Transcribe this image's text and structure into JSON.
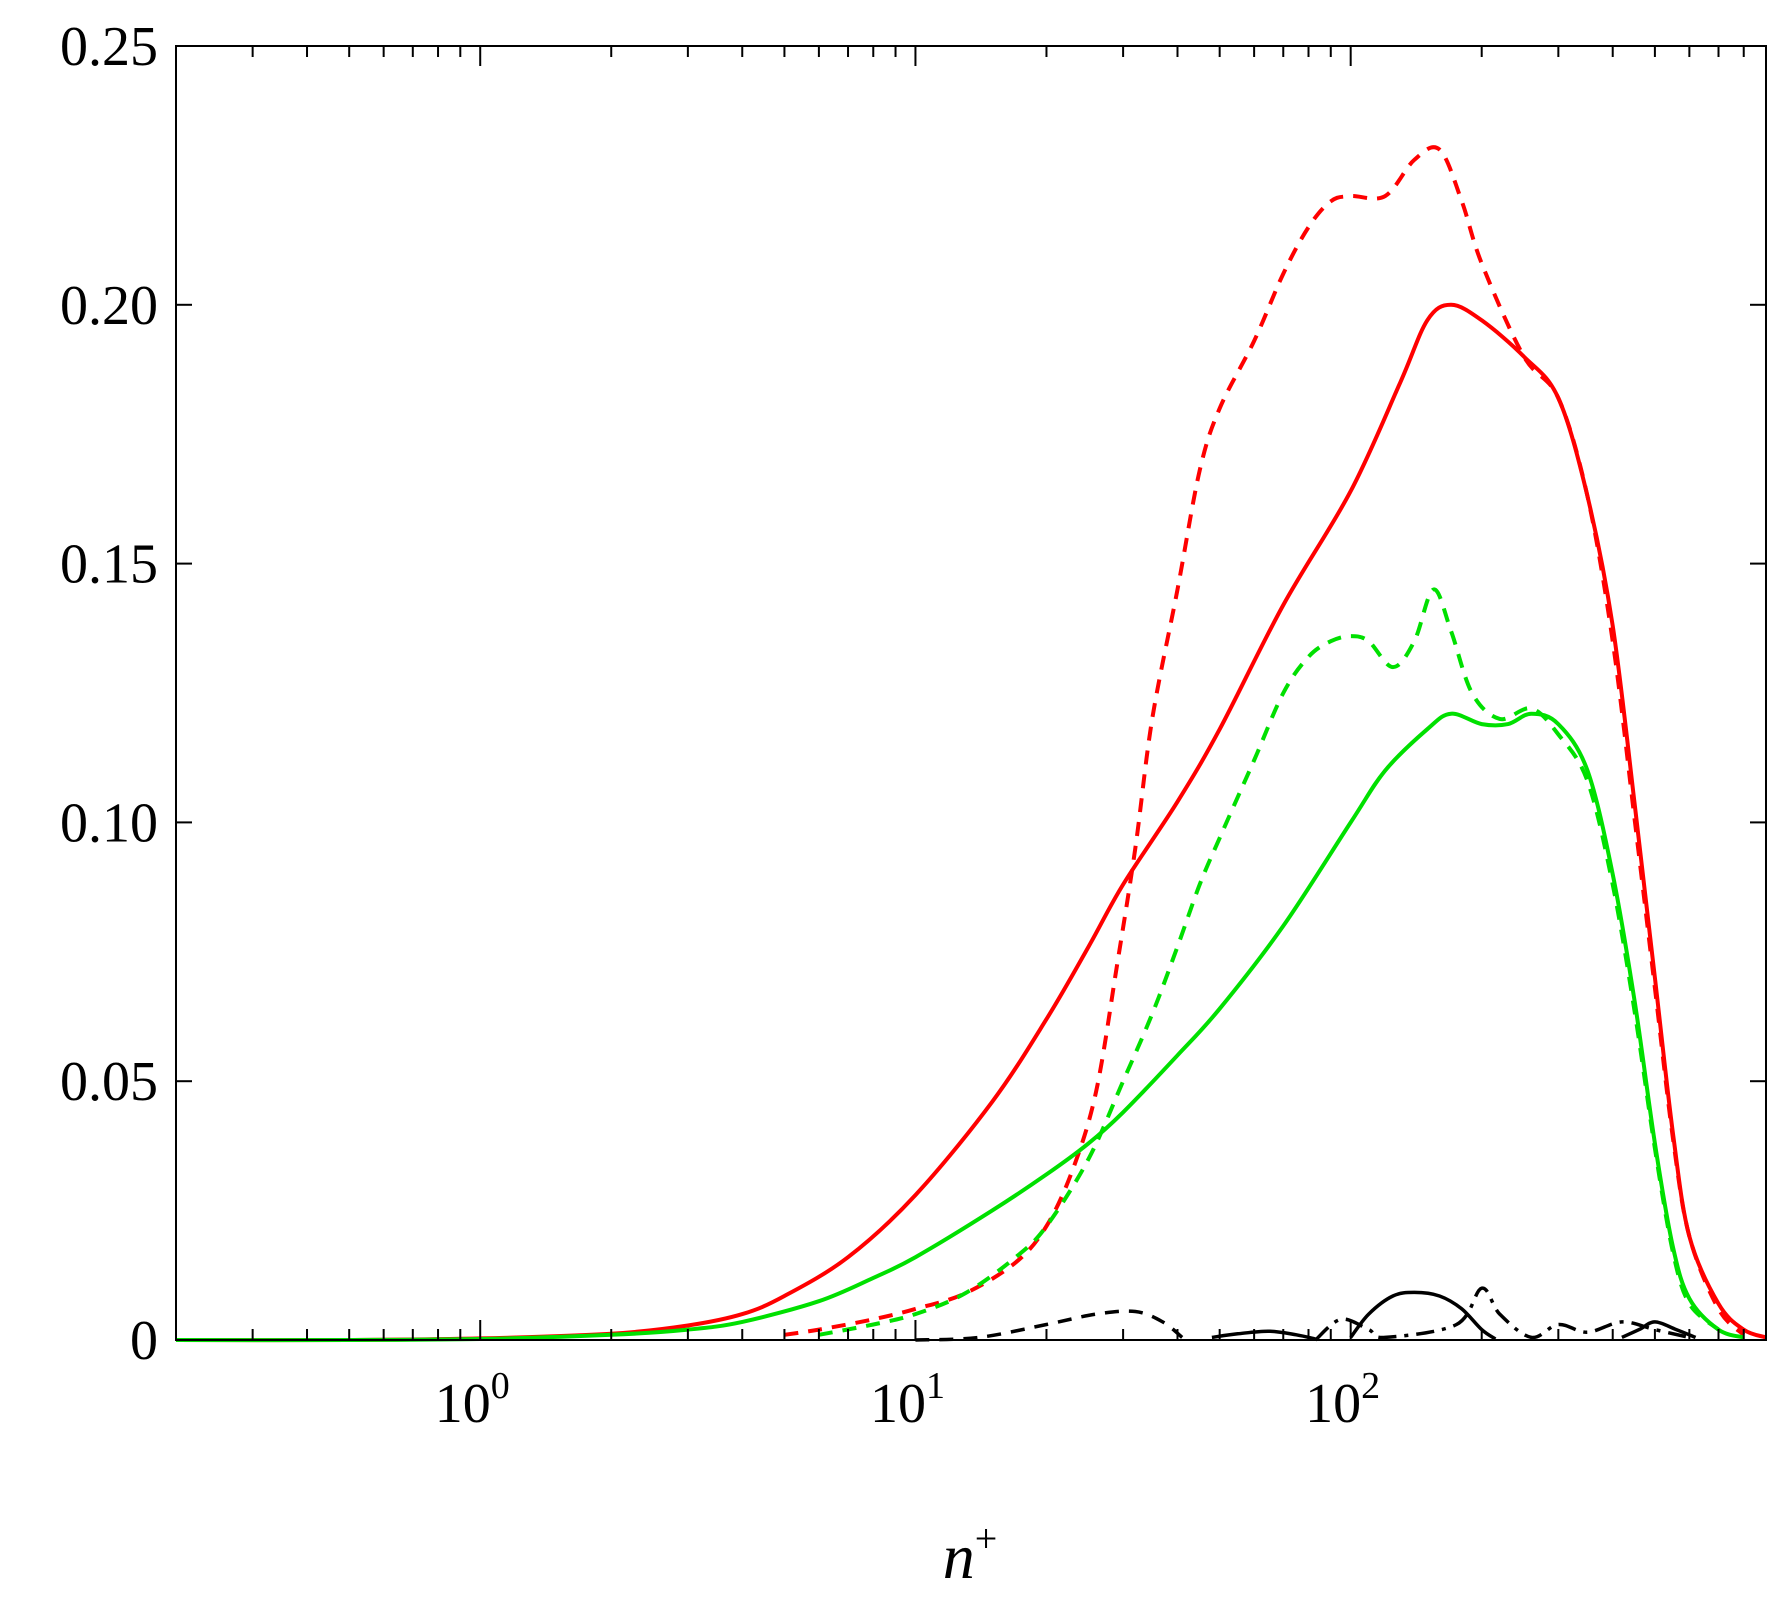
{
  "chart_data": {
    "type": "line",
    "title": "",
    "xlabel": "n",
    "xlabel_sup": "+",
    "ylabel": "",
    "xscale": "log",
    "xlim": [
      0.2,
      900
    ],
    "ylim": [
      0,
      0.25
    ],
    "grid": false,
    "legend": "none",
    "yticks": [
      {
        "value": 0,
        "label": "0"
      },
      {
        "value": 0.05,
        "label": "0.05"
      },
      {
        "value": 0.1,
        "label": "0.10"
      },
      {
        "value": 0.15,
        "label": "0.15"
      },
      {
        "value": 0.2,
        "label": "0.20"
      },
      {
        "value": 0.25,
        "label": "0.25"
      }
    ],
    "xticks": [
      {
        "value": 1,
        "base": "10",
        "exp": "0"
      },
      {
        "value": 10,
        "base": "10",
        "exp": "1"
      },
      {
        "value": 100,
        "base": "10",
        "exp": "2"
      }
    ],
    "series": [
      {
        "color": "#ff0000",
        "dash": "solid",
        "width": 4,
        "points": [
          [
            0.2,
            0
          ],
          [
            0.5,
            0
          ],
          [
            1,
            0.0003
          ],
          [
            2,
            0.0012
          ],
          [
            3,
            0.0028
          ],
          [
            4,
            0.005
          ],
          [
            5,
            0.0085
          ],
          [
            7,
            0.016
          ],
          [
            10,
            0.028
          ],
          [
            15,
            0.046
          ],
          [
            20,
            0.062
          ],
          [
            25,
            0.076
          ],
          [
            30,
            0.088
          ],
          [
            40,
            0.104
          ],
          [
            50,
            0.118
          ],
          [
            70,
            0.142
          ],
          [
            100,
            0.164
          ],
          [
            130,
            0.185
          ],
          [
            150,
            0.197
          ],
          [
            170,
            0.2
          ],
          [
            200,
            0.197
          ],
          [
            250,
            0.19
          ],
          [
            300,
            0.182
          ],
          [
            350,
            0.163
          ],
          [
            400,
            0.138
          ],
          [
            450,
            0.103
          ],
          [
            500,
            0.07
          ],
          [
            550,
            0.04
          ],
          [
            600,
            0.02
          ],
          [
            700,
            0.007
          ],
          [
            800,
            0.002
          ],
          [
            900,
            0.0005
          ]
        ]
      },
      {
        "color": "#ff0000",
        "dash": "dashed",
        "width": 4,
        "points": [
          [
            5,
            0.001
          ],
          [
            6,
            0.002
          ],
          [
            8,
            0.004
          ],
          [
            10,
            0.006
          ],
          [
            13,
            0.009
          ],
          [
            17,
            0.015
          ],
          [
            20,
            0.022
          ],
          [
            23,
            0.033
          ],
          [
            26,
            0.048
          ],
          [
            29,
            0.072
          ],
          [
            32,
            0.095
          ],
          [
            35,
            0.12
          ],
          [
            40,
            0.145
          ],
          [
            45,
            0.168
          ],
          [
            50,
            0.18
          ],
          [
            60,
            0.193
          ],
          [
            70,
            0.206
          ],
          [
            80,
            0.215
          ],
          [
            90,
            0.22
          ],
          [
            100,
            0.221
          ],
          [
            120,
            0.221
          ],
          [
            140,
            0.228
          ],
          [
            160,
            0.23
          ],
          [
            180,
            0.22
          ],
          [
            200,
            0.208
          ],
          [
            250,
            0.19
          ],
          [
            300,
            0.182
          ],
          [
            350,
            0.163
          ],
          [
            400,
            0.135
          ],
          [
            450,
            0.1
          ],
          [
            500,
            0.068
          ],
          [
            550,
            0.039
          ],
          [
            600,
            0.02
          ],
          [
            700,
            0.006
          ],
          [
            800,
            0.001
          ]
        ]
      },
      {
        "color": "#00e000",
        "dash": "solid",
        "width": 4,
        "points": [
          [
            0.2,
            0
          ],
          [
            0.5,
            0
          ],
          [
            1,
            0.0002
          ],
          [
            2,
            0.001
          ],
          [
            3,
            0.002
          ],
          [
            4,
            0.0035
          ],
          [
            6,
            0.0075
          ],
          [
            8,
            0.012
          ],
          [
            10,
            0.016
          ],
          [
            15,
            0.025
          ],
          [
            20,
            0.032
          ],
          [
            25,
            0.038
          ],
          [
            30,
            0.044
          ],
          [
            40,
            0.055
          ],
          [
            50,
            0.064
          ],
          [
            70,
            0.08
          ],
          [
            100,
            0.1
          ],
          [
            120,
            0.11
          ],
          [
            150,
            0.118
          ],
          [
            170,
            0.121
          ],
          [
            200,
            0.119
          ],
          [
            230,
            0.119
          ],
          [
            260,
            0.121
          ],
          [
            300,
            0.119
          ],
          [
            350,
            0.11
          ],
          [
            400,
            0.09
          ],
          [
            450,
            0.065
          ],
          [
            500,
            0.038
          ],
          [
            550,
            0.018
          ],
          [
            600,
            0.008
          ],
          [
            700,
            0.002
          ],
          [
            800,
            0.0005
          ]
        ]
      },
      {
        "color": "#00e000",
        "dash": "dashed",
        "width": 4,
        "points": [
          [
            6,
            0.001
          ],
          [
            8,
            0.003
          ],
          [
            10,
            0.005
          ],
          [
            13,
            0.009
          ],
          [
            17,
            0.016
          ],
          [
            20,
            0.022
          ],
          [
            25,
            0.035
          ],
          [
            30,
            0.05
          ],
          [
            35,
            0.063
          ],
          [
            40,
            0.076
          ],
          [
            45,
            0.088
          ],
          [
            50,
            0.097
          ],
          [
            60,
            0.112
          ],
          [
            70,
            0.125
          ],
          [
            80,
            0.132
          ],
          [
            90,
            0.135
          ],
          [
            100,
            0.136
          ],
          [
            110,
            0.135
          ],
          [
            125,
            0.13
          ],
          [
            140,
            0.135
          ],
          [
            155,
            0.145
          ],
          [
            170,
            0.137
          ],
          [
            190,
            0.125
          ],
          [
            220,
            0.12
          ],
          [
            260,
            0.122
          ],
          [
            300,
            0.117
          ],
          [
            350,
            0.108
          ],
          [
            400,
            0.088
          ],
          [
            450,
            0.063
          ],
          [
            500,
            0.037
          ],
          [
            550,
            0.017
          ],
          [
            600,
            0.007
          ],
          [
            700,
            0.002
          ]
        ]
      },
      {
        "color": "#000000",
        "dash": "dashed",
        "width": 3.5,
        "points": [
          [
            10,
            0
          ],
          [
            14,
            0.0005
          ],
          [
            20,
            0.003
          ],
          [
            26,
            0.005
          ],
          [
            32,
            0.0055
          ],
          [
            37,
            0.0035
          ],
          [
            41,
            0.0005
          ]
        ]
      },
      {
        "color": "#000000",
        "dash": "solid",
        "width": 3.5,
        "points": [
          [
            48,
            0.0005
          ],
          [
            55,
            0.0012
          ],
          [
            65,
            0.0017
          ],
          [
            75,
            0.001
          ],
          [
            83,
            0.0002
          ]
        ]
      },
      {
        "color": "#000000",
        "dash": "solid",
        "width": 3.5,
        "points": [
          [
            100,
            0.0005
          ],
          [
            110,
            0.005
          ],
          [
            125,
            0.0085
          ],
          [
            140,
            0.0092
          ],
          [
            160,
            0.0085
          ],
          [
            180,
            0.006
          ],
          [
            200,
            0.002
          ],
          [
            215,
            0.0002
          ]
        ]
      },
      {
        "color": "#000000",
        "dash": "dashdot",
        "width": 3.5,
        "points": [
          [
            83,
            0
          ],
          [
            95,
            0.004
          ],
          [
            110,
            0.002
          ],
          [
            120,
            0.0005
          ],
          [
            175,
            0.003
          ],
          [
            200,
            0.01
          ],
          [
            220,
            0.005
          ],
          [
            260,
            0.0005
          ],
          [
            300,
            0.003
          ],
          [
            350,
            0.0015
          ],
          [
            420,
            0.0035
          ],
          [
            500,
            0.002
          ],
          [
            600,
            0.0005
          ]
        ]
      },
      {
        "color": "#000000",
        "dash": "solid",
        "width": 3.5,
        "points": [
          [
            420,
            0.0005
          ],
          [
            460,
            0.002
          ],
          [
            500,
            0.0035
          ],
          [
            560,
            0.002
          ],
          [
            620,
            0.0005
          ]
        ]
      }
    ]
  }
}
